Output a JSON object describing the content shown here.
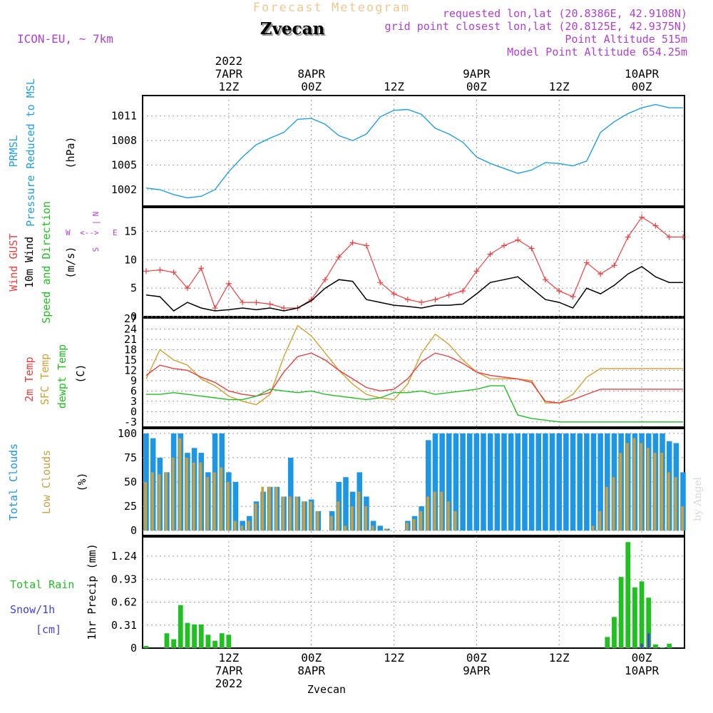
{
  "header": {
    "title": "Forecast Meteogram",
    "location": "Zvecan",
    "model": "ICON-EU, ~ 7km",
    "requested": "requested lon,lat (20.8386E, 42.9108N)",
    "grid_point": "grid point closest lon,lat (20.8125E, 42.9375N)",
    "point_alt": "Point Altitude 515m",
    "model_alt": "Model Point Altitude 654.25m",
    "footer": "Zvecan",
    "watermark": "by Angel"
  },
  "time_axis": {
    "top": [
      {
        "h": 12,
        "lines": [
          "2022",
          "7APR",
          "12Z"
        ]
      },
      {
        "h": 24,
        "lines": [
          "8APR",
          "00Z"
        ]
      },
      {
        "h": 36,
        "lines": [
          "12Z"
        ]
      },
      {
        "h": 48,
        "lines": [
          "9APR",
          "00Z"
        ]
      },
      {
        "h": 60,
        "lines": [
          "12Z"
        ]
      },
      {
        "h": 72,
        "lines": [
          "10APR",
          "00Z"
        ]
      }
    ],
    "bottom": [
      {
        "h": 12,
        "lines": [
          "12Z",
          "7APR",
          "2022"
        ]
      },
      {
        "h": 24,
        "lines": [
          "00Z",
          "8APR"
        ]
      },
      {
        "h": 36,
        "lines": [
          "12Z"
        ]
      },
      {
        "h": 48,
        "lines": [
          "00Z",
          "9APR"
        ]
      },
      {
        "h": 60,
        "lines": [
          "12Z"
        ]
      },
      {
        "h": 72,
        "lines": [
          "00Z",
          "10APR"
        ]
      }
    ]
  },
  "colors": {
    "pressure": "#1ea0e6",
    "gust": "#f04040",
    "wind": "#000000",
    "temp2m": "#e84040",
    "sfc": "#d4a030",
    "dewpt": "#20c020",
    "total_clouds": "#1e96e6",
    "low_clouds": "#c8a040",
    "rain": "#20c020",
    "snow": "#4040e0",
    "label_purple": "#b040d0"
  },
  "labels": {
    "pressure": [
      "PRMSL",
      "Pressure Reduced to MSL",
      "(hPa)"
    ],
    "wind": [
      "Wind GUST",
      "10m Wind",
      "Speed and Direction",
      "(m/s)"
    ],
    "compass": {
      "n": "N",
      "s": "S",
      "w": "W",
      "e": "E",
      "mid": "<-->",
      "v": "|"
    },
    "temp": [
      "2m Temp",
      "SFC Temp",
      "dewpt Temp",
      "(C)"
    ],
    "clouds": [
      "Total Clouds",
      "Low Clouds",
      "(%)"
    ],
    "precip": [
      "Total Rain",
      "Snow/1h",
      "[cm]",
      "1hr Precip (mm)"
    ]
  },
  "chart_data": [
    {
      "type": "line",
      "name": "pressure",
      "ylabel": "(hPa)",
      "ylim": [
        1000,
        1013.5
      ],
      "yticks": [
        1002,
        1005,
        1008,
        1011
      ],
      "x": [
        0,
        2,
        4,
        6,
        8,
        10,
        12,
        14,
        16,
        18,
        20,
        22,
        24,
        26,
        28,
        30,
        32,
        34,
        36,
        38,
        40,
        42,
        44,
        46,
        48,
        50,
        52,
        54,
        56,
        58,
        60,
        62,
        64,
        66,
        68,
        70,
        72,
        74,
        76,
        78
      ],
      "series": [
        {
          "name": "PRMSL",
          "values": [
            1002.2,
            1002.0,
            1001.4,
            1001.0,
            1001.2,
            1002.0,
            1004.2,
            1006.0,
            1007.5,
            1008.3,
            1009.0,
            1010.6,
            1010.7,
            1010.0,
            1008.6,
            1008.0,
            1008.8,
            1010.9,
            1011.7,
            1011.8,
            1011.2,
            1009.5,
            1008.8,
            1007.8,
            1006.0,
            1005.2,
            1004.6,
            1004.0,
            1004.4,
            1005.3,
            1005.2,
            1004.9,
            1005.5,
            1009.0,
            1010.3,
            1011.3,
            1012.0,
            1012.4,
            1012.0,
            1012.0
          ]
        }
      ]
    },
    {
      "type": "line",
      "name": "wind",
      "ylabel": "(m/s)",
      "ylim": [
        0,
        19.2
      ],
      "yticks": [
        0,
        5,
        10,
        15
      ],
      "x": [
        0,
        2,
        4,
        6,
        8,
        10,
        12,
        14,
        16,
        18,
        20,
        22,
        24,
        26,
        28,
        30,
        32,
        34,
        36,
        38,
        40,
        42,
        44,
        46,
        48,
        50,
        52,
        54,
        56,
        58,
        60,
        62,
        64,
        66,
        68,
        70,
        72,
        74,
        76,
        78
      ],
      "series": [
        {
          "name": "Wind GUST",
          "values": [
            8.0,
            8.2,
            7.8,
            5.0,
            8.5,
            1.5,
            5.8,
            2.5,
            2.5,
            2.2,
            1.5,
            1.5,
            3.0,
            6.5,
            10.5,
            13.0,
            12.5,
            6.0,
            4.0,
            3.0,
            2.5,
            3.0,
            3.8,
            4.5,
            8.0,
            11.0,
            12.5,
            13.5,
            12.0,
            6.5,
            4.5,
            3.5,
            9.5,
            7.5,
            9.0,
            14.0,
            17.5,
            16.0,
            14.0,
            14.0
          ]
        },
        {
          "name": "10m Wind",
          "values": [
            3.8,
            3.5,
            1.0,
            2.5,
            1.5,
            1.0,
            1.2,
            1.5,
            1.2,
            1.5,
            1.0,
            1.5,
            2.8,
            5.0,
            6.5,
            6.2,
            3.0,
            2.5,
            2.0,
            1.8,
            1.5,
            2.0,
            2.0,
            2.2,
            4.0,
            6.0,
            6.5,
            7.0,
            5.0,
            3.0,
            2.5,
            1.5,
            5.0,
            4.0,
            5.5,
            7.5,
            8.8,
            7.0,
            6.0,
            6.0
          ]
        }
      ]
    },
    {
      "type": "line",
      "name": "temperature",
      "ylabel": "(C)",
      "ylim": [
        -4.5,
        27.2
      ],
      "yticks": [
        -3,
        0,
        3,
        6,
        9,
        12,
        15,
        18,
        21,
        24,
        27
      ],
      "x": [
        0,
        2,
        4,
        6,
        8,
        10,
        12,
        14,
        16,
        18,
        20,
        22,
        24,
        26,
        28,
        30,
        32,
        34,
        36,
        38,
        40,
        42,
        44,
        46,
        48,
        50,
        52,
        54,
        56,
        58,
        60,
        62,
        64,
        66,
        68,
        70,
        72,
        74,
        76,
        78
      ],
      "series": [
        {
          "name": "2m Temp",
          "values": [
            10.5,
            13.5,
            12.5,
            12.0,
            10.0,
            8.5,
            6.0,
            5.0,
            4.5,
            5.5,
            11.5,
            16.0,
            17.0,
            15.0,
            12.0,
            9.5,
            7.0,
            6.0,
            6.5,
            9.5,
            14.5,
            17.0,
            16.0,
            14.0,
            11.5,
            10.5,
            10.0,
            9.5,
            8.5,
            3.0,
            2.5,
            3.5,
            5.0,
            6.5,
            6.5,
            6.5,
            6.5,
            6.5,
            6.5,
            6.5
          ]
        },
        {
          "name": "SFC Temp",
          "values": [
            9.5,
            18.0,
            15.0,
            13.5,
            9.5,
            7.5,
            4.5,
            3.0,
            2.0,
            5.0,
            16.0,
            25.0,
            22.0,
            17.0,
            12.0,
            8.0,
            5.0,
            4.0,
            3.5,
            8.0,
            17.0,
            22.5,
            19.5,
            15.0,
            11.5,
            9.5,
            9.5,
            9.5,
            9.0,
            2.5,
            2.5,
            5.0,
            10.0,
            12.5,
            12.5,
            12.5,
            12.5,
            12.5,
            12.5,
            12.5
          ]
        },
        {
          "name": "dewpt Temp",
          "values": [
            5.0,
            5.0,
            5.5,
            5.0,
            4.5,
            4.0,
            3.5,
            3.5,
            4.5,
            6.5,
            6.0,
            5.5,
            6.0,
            5.0,
            4.5,
            4.0,
            3.5,
            4.0,
            5.5,
            5.5,
            6.0,
            5.0,
            5.5,
            6.0,
            6.5,
            7.5,
            7.5,
            -1.0,
            -2.0,
            -2.5,
            -3.0,
            -3.0,
            -3.0,
            -3.0,
            -3.0,
            -3.0,
            -3.0,
            -3.0,
            -3.0,
            -3.0
          ]
        }
      ]
    },
    {
      "type": "bar",
      "name": "clouds",
      "ylabel": "(%)",
      "ylim": [
        -5,
        105
      ],
      "yticks": [
        0,
        25,
        50,
        75,
        100
      ],
      "x": [
        0,
        1,
        2,
        3,
        4,
        5,
        6,
        7,
        8,
        9,
        10,
        11,
        12,
        13,
        14,
        15,
        16,
        17,
        18,
        19,
        20,
        21,
        22,
        23,
        24,
        25,
        26,
        27,
        28,
        29,
        30,
        31,
        32,
        33,
        34,
        35,
        36,
        37,
        38,
        39,
        40,
        41,
        42,
        43,
        44,
        45,
        46,
        47,
        48,
        49,
        50,
        51,
        52,
        53,
        54,
        55,
        56,
        57,
        58,
        59,
        60,
        61,
        62,
        63,
        64,
        65,
        66,
        67,
        68,
        69,
        70,
        71,
        72,
        73,
        74,
        75,
        76,
        77,
        78
      ],
      "series": [
        {
          "name": "Total Clouds",
          "values": [
            100,
            95,
            75,
            60,
            100,
            100,
            80,
            85,
            80,
            60,
            100,
            100,
            60,
            50,
            10,
            15,
            30,
            40,
            45,
            45,
            35,
            75,
            35,
            30,
            32,
            20,
            0,
            20,
            50,
            55,
            40,
            60,
            35,
            10,
            5,
            2,
            0,
            0,
            10,
            15,
            25,
            93,
            100,
            100,
            100,
            100,
            100,
            100,
            100,
            100,
            100,
            100,
            100,
            100,
            100,
            100,
            100,
            100,
            100,
            100,
            100,
            100,
            100,
            100,
            100,
            100,
            100,
            100,
            100,
            100,
            100,
            100,
            100,
            100,
            100,
            100,
            92,
            90,
            60
          ]
        },
        {
          "name": "Low Clouds",
          "values": [
            50,
            60,
            58,
            60,
            75,
            95,
            75,
            70,
            70,
            55,
            60,
            65,
            50,
            10,
            5,
            10,
            28,
            45,
            45,
            45,
            35,
            35,
            35,
            30,
            30,
            20,
            0,
            15,
            30,
            5,
            25,
            40,
            25,
            5,
            0,
            2,
            0,
            0,
            8,
            12,
            20,
            35,
            40,
            40,
            30,
            20,
            0,
            0,
            0,
            0,
            0,
            0,
            0,
            0,
            0,
            0,
            0,
            0,
            0,
            0,
            0,
            0,
            0,
            0,
            0,
            5,
            20,
            45,
            55,
            80,
            90,
            95,
            90,
            85,
            80,
            80,
            60,
            55,
            25
          ]
        }
      ]
    },
    {
      "type": "bar",
      "name": "precipitation",
      "ylabel": "1hr Precip (mm)",
      "ylim": [
        0,
        1.5
      ],
      "yticks": [
        0,
        0.31,
        0.62,
        0.93,
        1.24
      ],
      "x": [
        0,
        1,
        2,
        3,
        4,
        5,
        6,
        7,
        8,
        9,
        10,
        11,
        12,
        13,
        14,
        15,
        16,
        17,
        18,
        19,
        20,
        21,
        22,
        23,
        24,
        25,
        26,
        27,
        28,
        29,
        30,
        31,
        32,
        33,
        34,
        35,
        36,
        37,
        38,
        39,
        40,
        41,
        42,
        43,
        44,
        45,
        46,
        47,
        48,
        49,
        50,
        51,
        52,
        53,
        54,
        55,
        56,
        57,
        58,
        59,
        60,
        61,
        62,
        63,
        64,
        65,
        66,
        67,
        68,
        69,
        70,
        71,
        72,
        73,
        74,
        75,
        76,
        77,
        78
      ],
      "series": [
        {
          "name": "Total Rain",
          "values": [
            0.03,
            0,
            0,
            0.2,
            0.12,
            0.58,
            0.34,
            0.32,
            0.32,
            0.18,
            0.1,
            0.2,
            0.18,
            0,
            0,
            0,
            0,
            0,
            0,
            0,
            0,
            0,
            0,
            0,
            0,
            0,
            0,
            0,
            0,
            0,
            0,
            0,
            0,
            0,
            0,
            0,
            0,
            0,
            0,
            0,
            0,
            0,
            0,
            0,
            0,
            0,
            0,
            0,
            0,
            0,
            0,
            0,
            0,
            0,
            0,
            0,
            0,
            0,
            0,
            0,
            0,
            0,
            0,
            0,
            0,
            0,
            0,
            0.15,
            0.42,
            0.96,
            1.43,
            0.82,
            0.9,
            0.68,
            0.05,
            0.01,
            0.06,
            0,
            0
          ]
        },
        {
          "name": "Snow/1h",
          "values": [
            0,
            0,
            0,
            0,
            0,
            0,
            0,
            0,
            0,
            0,
            0,
            0,
            0,
            0,
            0,
            0,
            0,
            0,
            0,
            0,
            0,
            0,
            0,
            0,
            0,
            0,
            0,
            0,
            0,
            0,
            0,
            0,
            0,
            0,
            0,
            0,
            0,
            0,
            0,
            0,
            0,
            0,
            0,
            0,
            0,
            0,
            0,
            0,
            0,
            0,
            0,
            0,
            0,
            0,
            0,
            0,
            0,
            0,
            0,
            0,
            0,
            0,
            0,
            0,
            0,
            0,
            0,
            0,
            0,
            0,
            0,
            0,
            0.06,
            0.2,
            0,
            0,
            0,
            0,
            0
          ]
        }
      ]
    }
  ]
}
